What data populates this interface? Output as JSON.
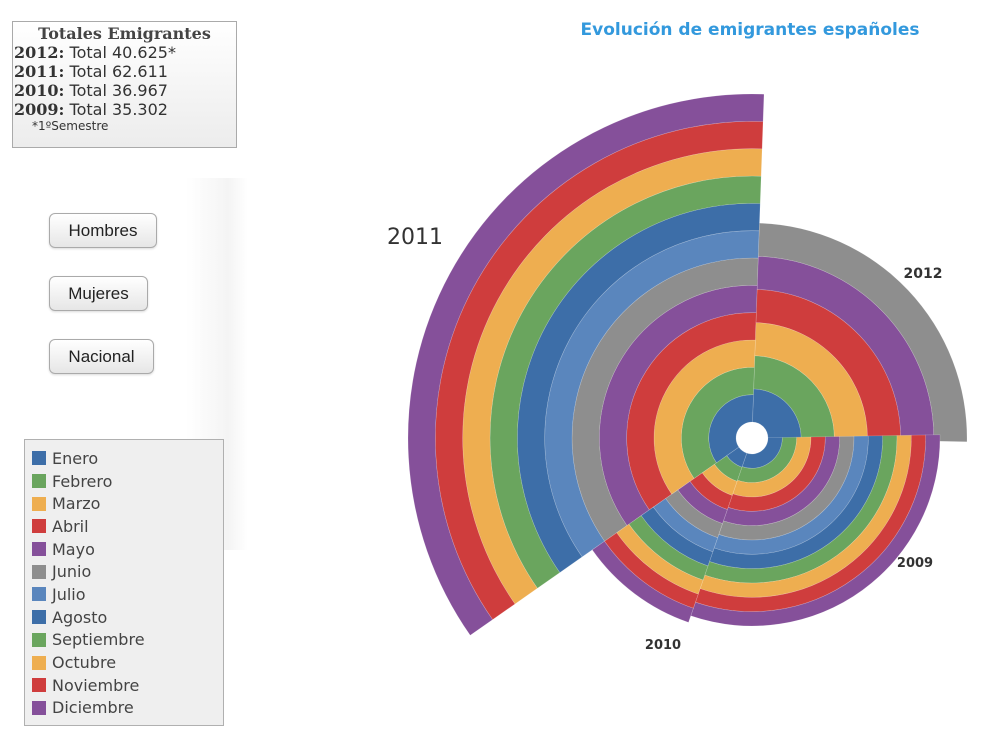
{
  "totals": {
    "title": "Totales Emigrantes",
    "rows": [
      {
        "year": "2012:",
        "value": "Total 40.625*"
      },
      {
        "year": "2011:",
        "value": "Total 62.611"
      },
      {
        "year": "2010:",
        "value": "Total 36.967"
      },
      {
        "year": "2009:",
        "value": "Total 35.302"
      }
    ],
    "note": "*1ºSemestre"
  },
  "buttons": [
    "Hombres",
    "Mujeres",
    "Nacional"
  ],
  "months": [
    {
      "name": "Enero",
      "color": "#3d6ea8"
    },
    {
      "name": "Febrero",
      "color": "#6aa55e"
    },
    {
      "name": "Marzo",
      "color": "#eeae50"
    },
    {
      "name": "Abril",
      "color": "#cf3d3d"
    },
    {
      "name": "Mayo",
      "color": "#85509a"
    },
    {
      "name": "Junio",
      "color": "#8e8e8e"
    },
    {
      "name": "Julio",
      "color": "#5a86bd"
    },
    {
      "name": "Agosto",
      "color": "#3d6ea8"
    },
    {
      "name": "Septiembre",
      "color": "#6aa55e"
    },
    {
      "name": "Octubre",
      "color": "#eeae50"
    },
    {
      "name": "Noviembre",
      "color": "#cf3d3d"
    },
    {
      "name": "Diciembre",
      "color": "#85509a"
    }
  ],
  "chart_data": {
    "type": "pie",
    "title": "Evolución de emigrantes españoles",
    "subtype": "nested-ring-sunburst",
    "ring_order": [
      "Enero",
      "Febrero",
      "Marzo",
      "Abril",
      "Mayo",
      "Junio",
      "Julio",
      "Agosto",
      "Septiembre",
      "Octubre",
      "Noviembre",
      "Diciembre"
    ],
    "series": [
      {
        "name": "2011",
        "total": 62611,
        "rings": 12
      },
      {
        "name": "2012",
        "total": 40625,
        "rings": 6
      },
      {
        "name": "2009",
        "total": 35302,
        "rings": 12
      },
      {
        "name": "2010",
        "total": 36967,
        "rings": 12
      }
    ]
  }
}
